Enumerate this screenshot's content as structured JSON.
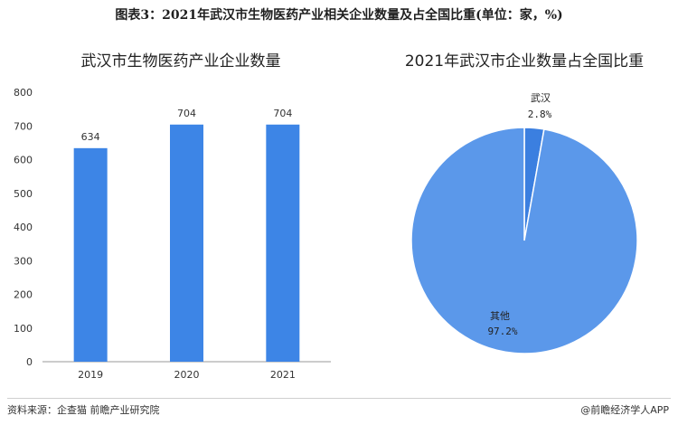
{
  "header": {
    "title": "图表3：2021年武汉市生物医药产业相关企业数量及占全国比重(单位：家，%)"
  },
  "footer": {
    "source": "资料来源：企查猫 前瞻产业研究院",
    "brand": "@前瞻经济学人APP"
  },
  "colors": {
    "bar": "#3d85e6",
    "pie_main": "#5b98ea",
    "pie_small": "#3b7fe0"
  },
  "chart_data": [
    {
      "type": "bar",
      "title": "武汉市生物医药产业企业数量",
      "categories": [
        "2019",
        "2020",
        "2021"
      ],
      "values": [
        634,
        704,
        704
      ],
      "data_labels": [
        "634",
        "704",
        "704"
      ],
      "ylim": [
        0,
        800
      ],
      "yticks": [
        0,
        100,
        200,
        300,
        400,
        500,
        600,
        700,
        800
      ],
      "xlabel": "",
      "ylabel": "",
      "grid": false
    },
    {
      "type": "pie",
      "title": "2021年武汉市企业数量占全国比重",
      "slices": [
        {
          "label": "武汉",
          "value": 2.8,
          "display": "2.8%"
        },
        {
          "label": "其他",
          "value": 97.2,
          "display": "97.2%"
        }
      ]
    }
  ]
}
